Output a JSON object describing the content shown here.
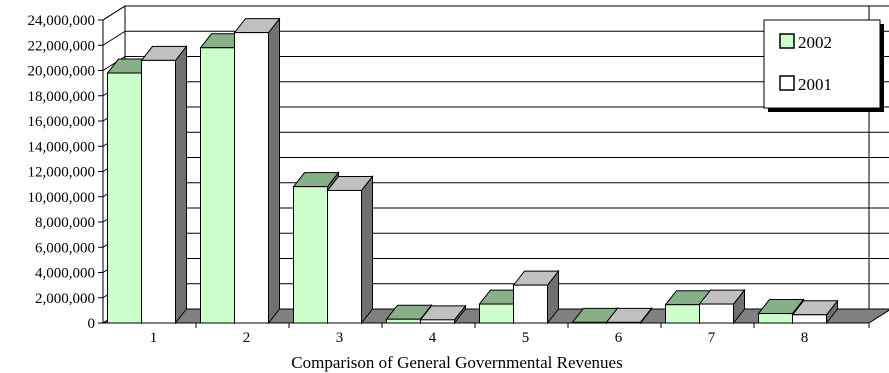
{
  "chart_data": {
    "type": "bar",
    "title": "",
    "xlabel": "Comparison of General Governmental Revenues",
    "ylabel": "",
    "ylim": [
      0,
      24000000
    ],
    "yticks": [
      "0",
      "2,000,000",
      "4,000,000",
      "6,000,000",
      "8,000,000",
      "10,000,000",
      "12,000,000",
      "14,000,000",
      "16,000,000",
      "18,000,000",
      "20,000,000",
      "22,000,000",
      "24,000,000"
    ],
    "categories": [
      "1",
      "2",
      "3",
      "4",
      "5",
      "6",
      "7",
      "8"
    ],
    "series": [
      {
        "name": "2002",
        "values": [
          19800000,
          21800000,
          10800000,
          300000,
          1500000,
          50000,
          1450000,
          750000
        ],
        "color": "#ccffcc",
        "top": "#88b088",
        "side": "#707070"
      },
      {
        "name": "2001",
        "values": [
          20800000,
          23000000,
          10500000,
          250000,
          3000000,
          50000,
          1500000,
          650000
        ],
        "color": "#ffffff",
        "top": "#c0c0c0",
        "side": "#707070"
      }
    ],
    "grid": true,
    "legend_position": "top-right",
    "style": "3d-column"
  }
}
